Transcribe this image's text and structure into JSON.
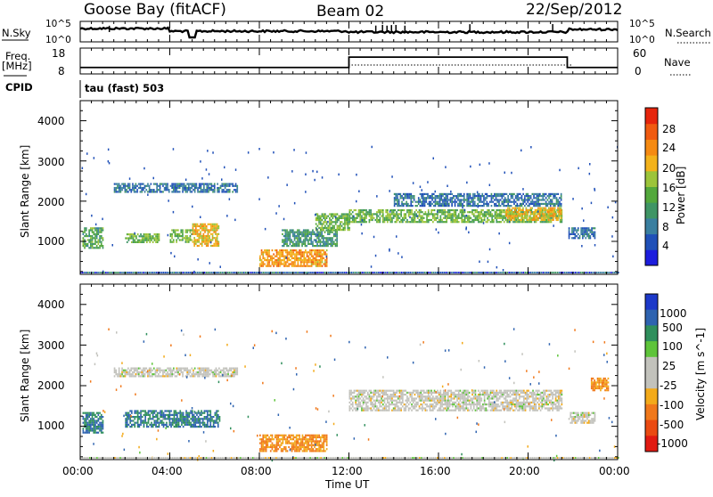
{
  "header": {
    "station": "Goose Bay (fitACF)",
    "beam": "Beam 02",
    "date": "22/Sep/2012"
  },
  "strip_labels": {
    "nsky": "N.Sky",
    "nsky_top": "10^5",
    "nsky_bottom": "10^0",
    "nsearch": "N.Search",
    "nsearch_top": "10^5",
    "nsearch_bottom": "10^0",
    "freq_line1": "Freq.",
    "freq_line2": "[MHz]",
    "freq_top": "18",
    "freq_bottom": "8",
    "nave": "Nave",
    "nave_top": "60",
    "nave_bottom": "0",
    "cpid": "CPID",
    "cpid_text": "tau (fast) 503"
  },
  "x_axis": {
    "label": "Time UT",
    "ticks": [
      "00:00",
      "04:00",
      "08:00",
      "12:00",
      "16:00",
      "20:00",
      "00:00"
    ]
  },
  "power_panel": {
    "ylabel": "Slant Range [km]",
    "yticks": [
      "1000",
      "2000",
      "3000",
      "4000"
    ],
    "colorbar_label": "Power [dB]",
    "colorbar_ticks": [
      "4",
      "8",
      "12",
      "16",
      "20",
      "24",
      "28"
    ],
    "colorbar_colors": [
      "#1d1ddd",
      "#2050b8",
      "#3a7fa0",
      "#3f9565",
      "#53a83c",
      "#9cc43a",
      "#f3b21b",
      "#f58a12",
      "#f05a10",
      "#e6250c"
    ]
  },
  "velocity_panel": {
    "ylabel": "Slant Range [km]",
    "yticks": [
      "1000",
      "2000",
      "3000",
      "4000"
    ],
    "colorbar_label": "Velocity [m s^-1]",
    "colorbar_ticks": [
      "1000",
      "500",
      "100",
      "25",
      "-25",
      "-100",
      "-500",
      "-1000"
    ],
    "colorbar_colors": [
      "#1c39c9",
      "#2e63b0",
      "#2f8f5c",
      "#5ec43a",
      "#c2c2bc",
      "#c2c2bc",
      "#f3aa1a",
      "#f0781a",
      "#ea4a12",
      "#e11a12"
    ]
  },
  "chart_data": {
    "type": "heatmap",
    "x_range_hours": [
      0,
      24
    ],
    "y_range_km": [
      180,
      4500
    ],
    "frequency_mhz_approx": [
      {
        "from": "00:00",
        "to": "12:00",
        "value": 10.5
      },
      {
        "from": "12:00",
        "to": "21:45",
        "value": 14.5
      },
      {
        "from": "21:45",
        "to": "00:00",
        "value": 10.5
      }
    ],
    "power_regions": [
      {
        "t": [
          0.1,
          1.0
        ],
        "r": [
          850,
          1350
        ],
        "power_db": 12
      },
      {
        "t": [
          1.5,
          7.0
        ],
        "r": [
          2250,
          2450
        ],
        "power_db": 6
      },
      {
        "t": [
          2.0,
          3.5
        ],
        "r": [
          1000,
          1200
        ],
        "power_db": 14
      },
      {
        "t": [
          4.0,
          5.0
        ],
        "r": [
          1000,
          1300
        ],
        "power_db": 14
      },
      {
        "t": [
          5.0,
          6.2
        ],
        "r": [
          900,
          1450
        ],
        "power_db": 20
      },
      {
        "t": [
          8.0,
          11.0
        ],
        "r": [
          400,
          800
        ],
        "power_db": 22
      },
      {
        "t": [
          9.0,
          11.5
        ],
        "r": [
          900,
          1300
        ],
        "power_db": 10
      },
      {
        "t": [
          10.5,
          12.0
        ],
        "r": [
          1300,
          1700
        ],
        "power_db": 14
      },
      {
        "t": [
          12.0,
          21.5
        ],
        "r": [
          1500,
          1800
        ],
        "power_db": 14
      },
      {
        "t": [
          19.0,
          21.5
        ],
        "r": [
          1550,
          1850
        ],
        "power_db": 20
      },
      {
        "t": [
          14.0,
          21.5
        ],
        "r": [
          1900,
          2200
        ],
        "power_db": 6
      },
      {
        "t": [
          21.8,
          23.0
        ],
        "r": [
          1100,
          1350
        ],
        "power_db": 6
      }
    ],
    "velocity_regions": [
      {
        "t": [
          0.1,
          1.0
        ],
        "r": [
          850,
          1350
        ],
        "velocity": 100
      },
      {
        "t": [
          2.0,
          6.2
        ],
        "r": [
          1000,
          1400
        ],
        "velocity": 100
      },
      {
        "t": [
          1.5,
          7.0
        ],
        "r": [
          2250,
          2450
        ],
        "velocity": 0
      },
      {
        "t": [
          8.0,
          11.0
        ],
        "r": [
          400,
          800
        ],
        "velocity": -100
      },
      {
        "t": [
          12.0,
          21.5
        ],
        "r": [
          1400,
          1900
        ],
        "velocity": 0
      },
      {
        "t": [
          21.8,
          23.0
        ],
        "r": [
          1100,
          1350
        ],
        "velocity": 0
      },
      {
        "t": [
          22.8,
          23.6
        ],
        "r": [
          1900,
          2200
        ],
        "velocity": -100
      }
    ]
  }
}
